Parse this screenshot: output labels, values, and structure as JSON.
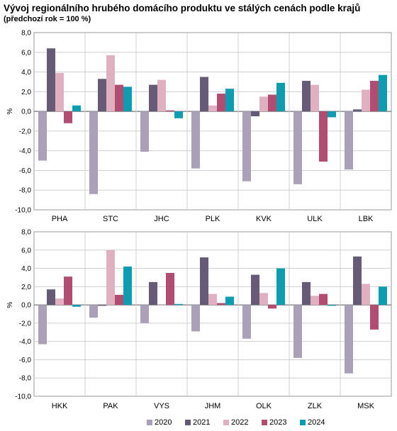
{
  "header": {
    "title": "Vývoj regionálního hrubého domácího produktu ve stálých cenách podle krajů",
    "subtitle": "(předchozí rok = 100 %)"
  },
  "chart_data": [
    {
      "type": "bar",
      "ylabel": "%",
      "ylim": [
        -10,
        8
      ],
      "yticks": [
        "8,0",
        "6,0",
        "4,0",
        "2,0",
        "0,0",
        "-2,0",
        "-4,0",
        "-6,0",
        "-8,0",
        "-10,0"
      ],
      "grid": true,
      "categories": [
        "PHA",
        "STC",
        "JHC",
        "PLK",
        "KVK",
        "ULK",
        "LBK"
      ],
      "series": [
        {
          "name": "2020",
          "color": "#aaa0b8",
          "values": [
            -5.0,
            -8.4,
            -4.1,
            -5.8,
            -7.1,
            -7.4,
            -5.9
          ]
        },
        {
          "name": "2021",
          "color": "#655b77",
          "values": [
            6.4,
            3.3,
            2.7,
            3.5,
            -0.5,
            3.1,
            0.2
          ]
        },
        {
          "name": "2022",
          "color": "#dfb0bf",
          "values": [
            3.9,
            5.7,
            3.2,
            0.6,
            1.5,
            2.7,
            2.2
          ]
        },
        {
          "name": "2023",
          "color": "#b14d70",
          "values": [
            -1.2,
            2.7,
            0.1,
            1.8,
            1.7,
            -5.1,
            3.1
          ]
        },
        {
          "name": "2024",
          "color": "#0c9eb0",
          "values": [
            0.6,
            2.5,
            -0.7,
            2.3,
            2.9,
            -0.6,
            3.7
          ]
        }
      ]
    },
    {
      "type": "bar",
      "ylabel": "%",
      "ylim": [
        -10,
        8
      ],
      "yticks": [
        "8,0",
        "6,0",
        "4,0",
        "2,0",
        "0,0",
        "-2,0",
        "-4,0",
        "-6,0",
        "-8,0",
        "-10,0"
      ],
      "grid": true,
      "categories": [
        "HKK",
        "PAK",
        "VYS",
        "JHM",
        "OLK",
        "ZLK",
        "MSK"
      ],
      "series": [
        {
          "name": "2020",
          "color": "#aaa0b8",
          "values": [
            -4.3,
            -1.4,
            -2.0,
            -2.9,
            -3.7,
            -5.8,
            -7.5
          ]
        },
        {
          "name": "2021",
          "color": "#655b77",
          "values": [
            1.7,
            -0.1,
            2.5,
            5.2,
            3.3,
            2.5,
            5.3
          ]
        },
        {
          "name": "2022",
          "color": "#dfb0bf",
          "values": [
            0.7,
            6.0,
            0.0,
            1.2,
            1.3,
            1.0,
            2.3
          ]
        },
        {
          "name": "2023",
          "color": "#b14d70",
          "values": [
            3.1,
            1.1,
            3.5,
            0.2,
            -0.4,
            1.2,
            -2.7
          ]
        },
        {
          "name": "2024",
          "color": "#0c9eb0",
          "values": [
            -0.2,
            4.2,
            0.1,
            0.9,
            4.0,
            -0.1,
            2.0
          ]
        }
      ]
    }
  ],
  "legend": {
    "placement": "bottom",
    "items": [
      {
        "label": "2020",
        "color": "#aaa0b8"
      },
      {
        "label": "2021",
        "color": "#655b77"
      },
      {
        "label": "2022",
        "color": "#dfb0bf"
      },
      {
        "label": "2023",
        "color": "#b14d70"
      },
      {
        "label": "2024",
        "color": "#0c9eb0"
      }
    ]
  }
}
